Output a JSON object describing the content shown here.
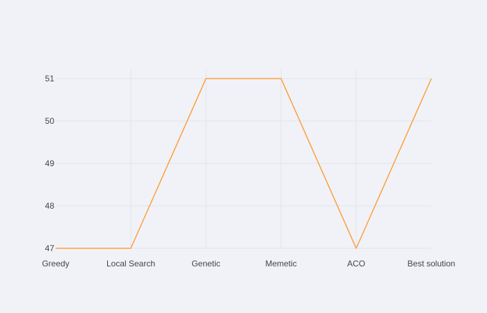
{
  "chart_data": {
    "type": "line",
    "title": "",
    "xlabel": "",
    "ylabel": "",
    "categories": [
      "Greedy",
      "Local Search",
      "Genetic",
      "Memetic",
      "ACO",
      "Best solution"
    ],
    "series": [
      {
        "values": [
          47,
          47,
          51,
          51,
          47,
          51
        ]
      }
    ],
    "yticks": [
      47,
      48,
      49,
      50,
      51
    ],
    "ylim": [
      47,
      51
    ],
    "grid": true,
    "legend": "none",
    "colors": {
      "background": "#f0f2f7",
      "plot_background": "#f0f2f7",
      "grid": "#e1e4ea",
      "line": "#ff9f3a",
      "tick_text": "#444444"
    }
  }
}
